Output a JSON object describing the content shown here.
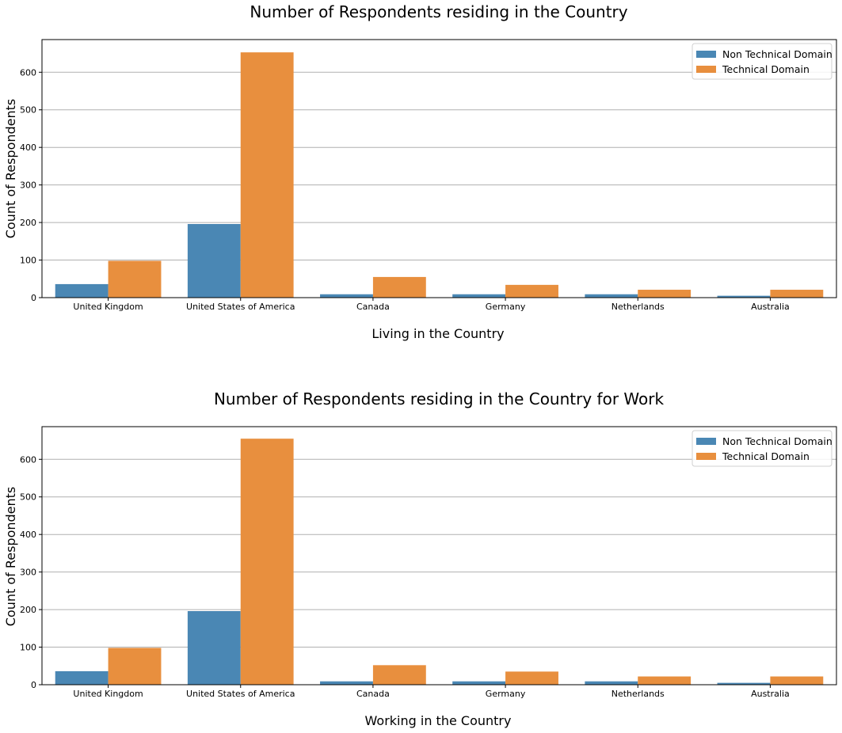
{
  "chart_data": [
    {
      "type": "bar",
      "title": "Number of Respondents residing in the Country",
      "xlabel": "Living in the Country",
      "ylabel": "Count of Respondents",
      "categories": [
        "United Kingdom",
        "United States of America",
        "Canada",
        "Germany",
        "Netherlands",
        "Australia"
      ],
      "series": [
        {
          "name": "Non Technical Domain",
          "color": "#4a87b4",
          "values": [
            36,
            196,
            9,
            9,
            9,
            5
          ]
        },
        {
          "name": "Technical Domain",
          "color": "#e88f3e",
          "values": [
            98,
            653,
            55,
            34,
            21,
            21
          ]
        }
      ],
      "ylim": [
        0,
        687
      ],
      "yticks": [
        0,
        100,
        200,
        300,
        400,
        500,
        600
      ],
      "grid": "horizontal",
      "legend": "top-right"
    },
    {
      "type": "bar",
      "title": "Number of Respondents residing in the Country for Work",
      "xlabel": "Working in the Country",
      "ylabel": "Count of Respondents",
      "categories": [
        "United Kingdom",
        "United States of America",
        "Canada",
        "Germany",
        "Netherlands",
        "Australia"
      ],
      "series": [
        {
          "name": "Non Technical Domain",
          "color": "#4a87b4",
          "values": [
            36,
            196,
            9,
            9,
            9,
            5
          ]
        },
        {
          "name": "Technical Domain",
          "color": "#e88f3e",
          "values": [
            98,
            655,
            52,
            35,
            22,
            22
          ]
        }
      ],
      "ylim": [
        0,
        687
      ],
      "yticks": [
        0,
        100,
        200,
        300,
        400,
        500,
        600
      ],
      "grid": "horizontal",
      "legend": "top-right"
    }
  ]
}
